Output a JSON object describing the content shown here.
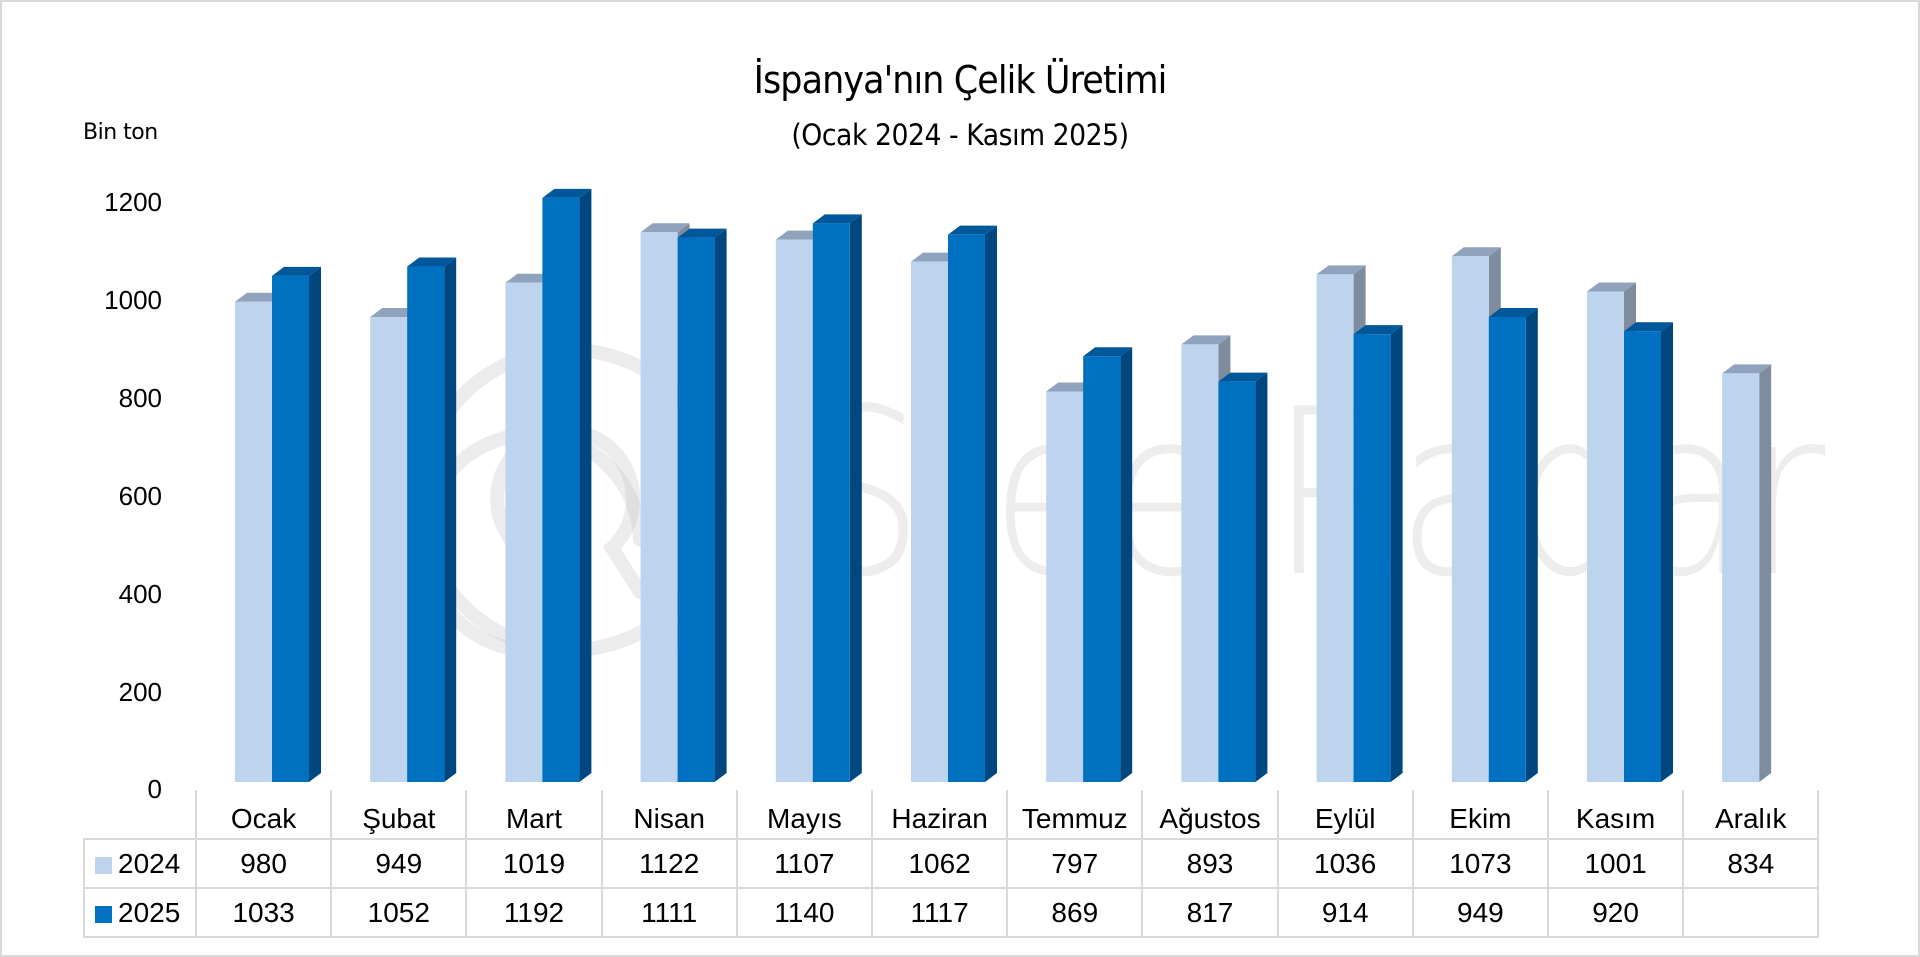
{
  "chart_data": {
    "type": "bar",
    "style": "3d-clustered-column-with-data-table",
    "title": "İspanya'nın Çelik Üretimi",
    "subtitle": "(Ocak 2024 - Kasım 2025)",
    "ylabel": "Bin ton",
    "xlabel": "",
    "ylim": [
      0,
      1200
    ],
    "yticks": [
      "0",
      "200",
      "400",
      "600",
      "800",
      "1000",
      "1200"
    ],
    "grid": false,
    "legend_position": "data-table",
    "categories": [
      "Ocak",
      "Şubat",
      "Mart",
      "Nisan",
      "Mayıs",
      "Haziran",
      "Temmuz",
      "Ağustos",
      "Eylül",
      "Ekim",
      "Kasım",
      "Aralık"
    ],
    "series": [
      {
        "name": "2024",
        "color": "#BDD3EE",
        "values": [
          980,
          949,
          1019,
          1122,
          1107,
          1062,
          797,
          893,
          1036,
          1073,
          1001,
          834
        ]
      },
      {
        "name": "2025",
        "color": "#0070C0",
        "values": [
          1033,
          1052,
          1192,
          1111,
          1140,
          1117,
          869,
          817,
          914,
          949,
          920,
          null
        ]
      }
    ]
  },
  "table": {
    "rows": [
      {
        "label": "2024",
        "cells": [
          "980",
          "949",
          "1019",
          "1122",
          "1107",
          "1062",
          "797",
          "893",
          "1036",
          "1073",
          "1001",
          "834"
        ]
      },
      {
        "label": "2025",
        "cells": [
          "1033",
          "1052",
          "1192",
          "1111",
          "1140",
          "1117",
          "869",
          "817",
          "914",
          "949",
          "920",
          ""
        ]
      }
    ]
  },
  "watermark": {
    "text": "SteelRadar",
    "logo": "steelradar-logo-icon"
  }
}
